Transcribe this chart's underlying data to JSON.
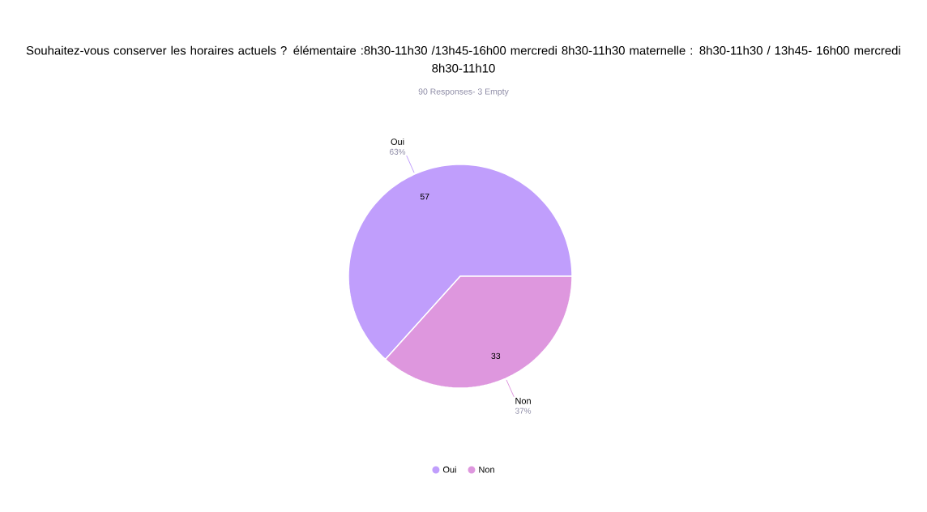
{
  "chart_data": {
    "type": "pie",
    "title": "Souhaitez-vous conserver les horaires actuels ? élémentaire :8h30-11h30 /13h45-16h00 mercredi 8h30-11h30 maternelle : 8h30-11h30 / 13h45- 16h00 mercredi 8h30-11h10",
    "subtitle": "90 Responses- 3 Empty",
    "categories": [
      "Oui",
      "Non"
    ],
    "values": [
      57,
      33
    ],
    "data_labels": true,
    "annotations": [
      {
        "text": "63%",
        "x": "Oui"
      },
      {
        "text": "37%",
        "x": "Non"
      }
    ],
    "colors": [
      "#c09efc",
      "#de97de"
    ],
    "legend": "bottom"
  }
}
